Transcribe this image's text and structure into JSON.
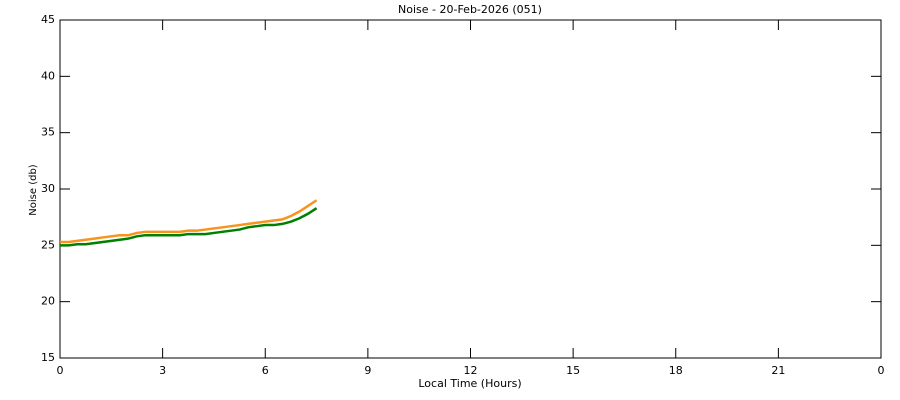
{
  "chart_data": {
    "type": "line",
    "title": "Noise - 20-Feb-2026 (051)",
    "x_label": "Local Time (Hours)",
    "y_label": "Noise (db)",
    "x": [
      0,
      0.25,
      0.5,
      0.75,
      1,
      1.25,
      1.5,
      1.75,
      2,
      2.25,
      2.5,
      2.75,
      3,
      3.25,
      3.5,
      3.75,
      4,
      4.25,
      4.5,
      4.75,
      5,
      5.25,
      5.5,
      5.75,
      6,
      6.25,
      6.5,
      6.75,
      7,
      7.25,
      7.5
    ],
    "series": [
      {
        "color": "#f7941d",
        "values": [
          25.3,
          25.3,
          25.4,
          25.5,
          25.6,
          25.7,
          25.8,
          25.9,
          25.9,
          26.1,
          26.2,
          26.2,
          26.2,
          26.2,
          26.2,
          26.3,
          26.3,
          26.4,
          26.5,
          26.6,
          26.7,
          26.8,
          26.9,
          27.0,
          27.1,
          27.2,
          27.3,
          27.6,
          28.0,
          28.5,
          29.0
        ]
      },
      {
        "color": "#008000",
        "values": [
          25.0,
          25.0,
          25.1,
          25.1,
          25.2,
          25.3,
          25.4,
          25.5,
          25.6,
          25.8,
          25.9,
          25.9,
          25.9,
          25.9,
          25.9,
          26.0,
          26.0,
          26.0,
          26.1,
          26.2,
          26.3,
          26.4,
          26.6,
          26.7,
          26.8,
          26.8,
          26.9,
          27.1,
          27.4,
          27.8,
          28.3
        ]
      }
    ],
    "xlim": [
      0,
      24
    ],
    "xticks": [
      0,
      3,
      6,
      9,
      12,
      15,
      18,
      21,
      {
        "value": 24,
        "label": "0"
      }
    ],
    "ylim": [
      15,
      45
    ],
    "yticks": [
      15,
      20,
      25,
      30,
      35,
      40,
      45
    ]
  }
}
